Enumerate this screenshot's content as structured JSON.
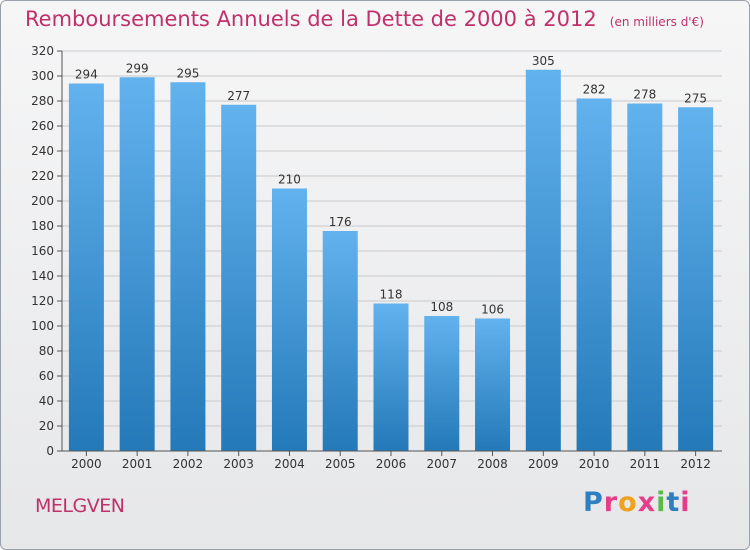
{
  "header": {
    "title": "Remboursements Annuels de la Dette de 2000 à 2012",
    "unit": "(en milliers d'€)"
  },
  "footer": {
    "town": "MELGVEN",
    "logo_text": "Proxiti"
  },
  "colors": {
    "title": "#c0306a",
    "bar_top": "#62b2ee",
    "bar_bottom": "#2479b8",
    "grid": "#c8c9cc"
  },
  "chart_data": {
    "type": "bar",
    "categories": [
      "2000",
      "2001",
      "2002",
      "2003",
      "2004",
      "2005",
      "2006",
      "2007",
      "2008",
      "2009",
      "2010",
      "2011",
      "2012"
    ],
    "values": [
      294,
      299,
      295,
      277,
      210,
      176,
      118,
      108,
      106,
      305,
      282,
      278,
      275
    ],
    "ylim": [
      0,
      320
    ],
    "yticks": [
      0,
      20,
      40,
      60,
      80,
      100,
      120,
      140,
      160,
      180,
      200,
      220,
      240,
      260,
      280,
      300,
      320
    ],
    "grid": true,
    "data_labels": true
  }
}
